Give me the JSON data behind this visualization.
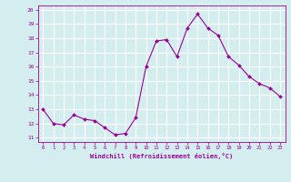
{
  "x": [
    0,
    1,
    2,
    3,
    4,
    5,
    6,
    7,
    8,
    9,
    10,
    11,
    12,
    13,
    14,
    15,
    16,
    17,
    18,
    19,
    20,
    21,
    22,
    23
  ],
  "y": [
    13.0,
    12.0,
    11.9,
    12.6,
    12.3,
    12.2,
    11.7,
    11.2,
    11.3,
    12.4,
    16.0,
    17.8,
    17.9,
    16.7,
    18.7,
    19.7,
    18.7,
    18.2,
    16.7,
    16.1,
    15.3,
    14.8,
    14.5,
    13.9
  ],
  "line_color": "#990099",
  "marker": "D",
  "marker_size": 2.0,
  "bg_color": "#d4eef0",
  "grid_color": "#ffffff",
  "xlabel": "Windchill (Refroidissement éolien,°C)",
  "ylabel_ticks": [
    11,
    12,
    13,
    14,
    15,
    16,
    17,
    18,
    19,
    20
  ],
  "xlim": [
    -0.5,
    23.5
  ],
  "ylim": [
    10.7,
    20.3
  ],
  "tick_color": "#990099",
  "label_color": "#990099"
}
